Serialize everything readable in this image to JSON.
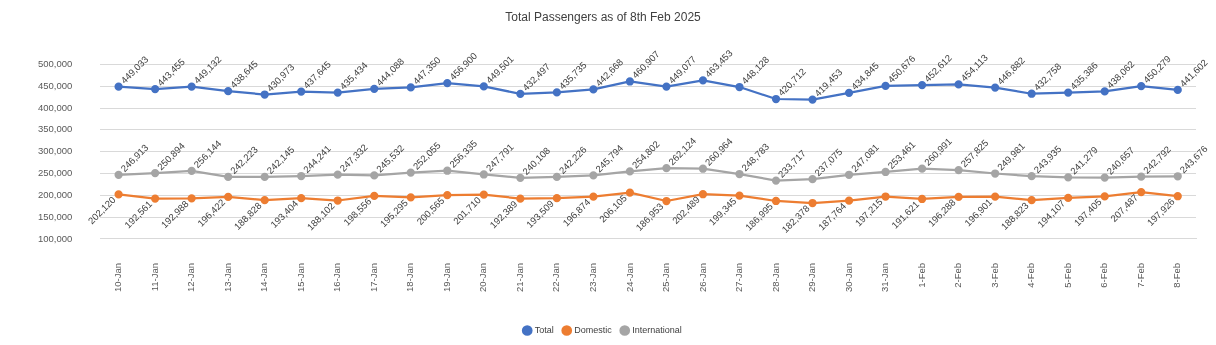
{
  "chart_data": {
    "type": "line",
    "title": "Total Passengers as of 8th Feb 2025",
    "categories": [
      "10-Jan",
      "11-Jan",
      "12-Jan",
      "13-Jan",
      "14-Jan",
      "15-Jan",
      "16-Jan",
      "17-Jan",
      "18-Jan",
      "19-Jan",
      "20-Jan",
      "21-Jan",
      "22-Jan",
      "23-Jan",
      "24-Jan",
      "25-Jan",
      "26-Jan",
      "27-Jan",
      "28-Jan",
      "29-Jan",
      "30-Jan",
      "31-Jan",
      "1-Feb",
      "2-Feb",
      "3-Feb",
      "4-Feb",
      "5-Feb",
      "6-Feb",
      "7-Feb",
      "8-Feb"
    ],
    "series": [
      {
        "name": "Total",
        "color": "#4472c4",
        "values": [
          449033,
          443455,
          449132,
          438645,
          430973,
          437645,
          435434,
          444088,
          447350,
          456900,
          449501,
          432497,
          435735,
          442668,
          460907,
          449077,
          463453,
          448128,
          420712,
          419453,
          434845,
          450676,
          452612,
          454113,
          446882,
          432758,
          435386,
          438062,
          450279,
          441602
        ],
        "value_labels": [
          "449,033",
          "443,455",
          "449,132",
          "438,645",
          "430,973",
          "437,645",
          "435,434",
          "444,088",
          "447,350",
          "456,900",
          "449,501",
          "432,497",
          "435,735",
          "442,668",
          "460,907",
          "449,077",
          "463,453",
          "448,128",
          "420,712",
          "419,453",
          "434,845",
          "450,676",
          "452,612",
          "454,113",
          "446,882",
          "432,758",
          "435,386",
          "438,062",
          "450,279",
          "441,602"
        ]
      },
      {
        "name": "Domestic",
        "color": "#ed7d31",
        "values": [
          202120,
          192561,
          192988,
          196422,
          188828,
          193404,
          188102,
          198556,
          195295,
          200565,
          201710,
          192389,
          193509,
          196874,
          206105,
          186953,
          202489,
          199345,
          186995,
          182378,
          187764,
          197215,
          191621,
          196288,
          196901,
          188823,
          194107,
          197405,
          207487,
          197926
        ],
        "value_labels": [
          "202,120",
          "192,561",
          "192,988",
          "196,422",
          "188,828",
          "193,404",
          "188,102",
          "198,556",
          "195,295",
          "200,565",
          "201,710",
          "192,389",
          "193,509",
          "196,874",
          "206,105",
          "186,953",
          "202,489",
          "199,345",
          "186,995",
          "182,378",
          "187,764",
          "197,215",
          "191,621",
          "196,288",
          "196,901",
          "188,823",
          "194,107",
          "197,405",
          "207,487",
          "197,926"
        ]
      },
      {
        "name": "International",
        "color": "#a5a5a5",
        "values": [
          246913,
          250894,
          256144,
          242223,
          242145,
          244241,
          247332,
          245532,
          252055,
          256335,
          247791,
          240108,
          242226,
          245794,
          254802,
          262124,
          260964,
          248783,
          233717,
          237075,
          247081,
          253461,
          260991,
          257825,
          249981,
          243935,
          241279,
          240657,
          242792,
          243676
        ],
        "value_labels": [
          "246,913",
          "250,894",
          "256,144",
          "242,223",
          "242,145",
          "244,241",
          "247,332",
          "245,532",
          "252,055",
          "256,335",
          "247,791",
          "240,108",
          "242,226",
          "245,794",
          "254,802",
          "262,124",
          "260,964",
          "248,783",
          "233,717",
          "237,075",
          "247,081",
          "253,461",
          "260,991",
          "257,825",
          "249,981",
          "243,935",
          "241,279",
          "240,657",
          "242,792",
          "243,676"
        ]
      }
    ],
    "ylim": [
      100000,
      500000
    ],
    "yticks": [
      {
        "value": 100000,
        "label": "100,000"
      },
      {
        "value": 150000,
        "label": "150,000"
      },
      {
        "value": 200000,
        "label": "200,000"
      },
      {
        "value": 250000,
        "label": "250,000"
      },
      {
        "value": 300000,
        "label": "300,000"
      },
      {
        "value": 350000,
        "label": "350,000"
      },
      {
        "value": 400000,
        "label": "400,000"
      },
      {
        "value": 450000,
        "label": "450,000"
      },
      {
        "value": 500000,
        "label": "500,000"
      }
    ],
    "grid": "y",
    "legend": "bottom",
    "marker": "circle",
    "line_style": "solid"
  }
}
